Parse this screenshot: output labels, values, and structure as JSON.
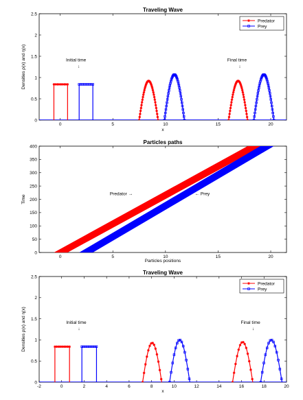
{
  "colors": {
    "predator": "#ff0000",
    "prey": "#0000ff",
    "axis": "#000000"
  },
  "chart_data": [
    {
      "type": "line",
      "title": "Traveling Wave",
      "xlabel": "x",
      "ylabel": "Densities ρ(x) and η(x)",
      "xlim": [
        -2,
        21.5
      ],
      "ylim": [
        0,
        2.5
      ],
      "xticks": [
        0,
        5,
        10,
        15,
        20
      ],
      "yticks": [
        0,
        0.5,
        1,
        1.5,
        2,
        2.5
      ],
      "xtick_labels": [
        "0",
        "5",
        "10",
        "15",
        "20"
      ],
      "ytick_labels": [
        "0",
        "0.5",
        "1",
        "1.5",
        "2",
        "2.5"
      ],
      "legend": {
        "position": "top-right",
        "entries": [
          "Predator",
          "Prey"
        ]
      },
      "annotations": [
        {
          "text": "Initial time",
          "x": 1.5,
          "y": 1.38
        },
        {
          "text": "Final time",
          "x": 16.8,
          "y": 1.38
        }
      ],
      "series": [
        {
          "name": "Predator",
          "shape": "box",
          "x": [
            -0.6,
            0.7
          ],
          "y": 0.84
        },
        {
          "name": "Prey",
          "shape": "box",
          "x": [
            1.8,
            3.1
          ],
          "y": 0.84
        },
        {
          "name": "Predator",
          "shape": "bump",
          "x": [
            7.5,
            9.3
          ],
          "y": 0.92
        },
        {
          "name": "Prey",
          "shape": "bump",
          "x": [
            9.9,
            11.8
          ],
          "y": 1.07
        },
        {
          "name": "Predator",
          "shape": "bump",
          "x": [
            16.0,
            17.8
          ],
          "y": 0.92
        },
        {
          "name": "Prey",
          "shape": "bump",
          "x": [
            18.4,
            20.3
          ],
          "y": 1.07
        }
      ]
    },
    {
      "type": "line",
      "title": "Particles paths",
      "xlabel": "Particles positions",
      "ylabel": "Time",
      "xlim": [
        -2,
        21.5
      ],
      "ylim": [
        0,
        400
      ],
      "xticks": [
        0,
        5,
        10,
        15,
        20
      ],
      "yticks": [
        0,
        50,
        100,
        150,
        200,
        250,
        300,
        350,
        400
      ],
      "xtick_labels": [
        "0",
        "5",
        "10",
        "15",
        "20"
      ],
      "ytick_labels": [
        "0",
        "50",
        "100",
        "150",
        "200",
        "250",
        "300",
        "350",
        "400"
      ],
      "annotations": [
        {
          "text": "Predator  →",
          "x": 5.8,
          "y": 215
        },
        {
          "text": "←  Prey",
          "x": 13.5,
          "y": 215
        }
      ],
      "series": [
        {
          "name": "Predator",
          "shape": "band",
          "x_start": [
            -0.6,
            0.7
          ],
          "x_end": [
            17.8,
            19.2
          ],
          "t": [
            0,
            400
          ]
        },
        {
          "name": "Prey",
          "shape": "band",
          "x_start": [
            1.8,
            3.1
          ],
          "x_end": [
            19.0,
            20.3
          ],
          "t": [
            0,
            400
          ]
        }
      ]
    },
    {
      "type": "line",
      "title": "Traveling Wave",
      "xlabel": "x",
      "ylabel": "Densities ρ(x) and η(x)",
      "xlim": [
        -2,
        20
      ],
      "ylim": [
        0,
        2.5
      ],
      "xticks": [
        -2,
        0,
        2,
        4,
        6,
        8,
        10,
        12,
        14,
        16,
        18,
        20
      ],
      "yticks": [
        0,
        0.5,
        1,
        1.5,
        2,
        2.5
      ],
      "xtick_labels": [
        "-2",
        "0",
        "2",
        "4",
        "6",
        "8",
        "10",
        "12",
        "14",
        "16",
        "18",
        "20"
      ],
      "ytick_labels": [
        "0",
        "0.5",
        "1",
        "1.5",
        "2",
        "2.5"
      ],
      "legend": {
        "position": "top-right",
        "entries": [
          "Predator",
          "Prey"
        ]
      },
      "annotations": [
        {
          "text": "Initial time",
          "x": 1.3,
          "y": 1.38
        },
        {
          "text": "Final time",
          "x": 16.8,
          "y": 1.38
        }
      ],
      "series": [
        {
          "name": "Predator",
          "shape": "box",
          "x": [
            -0.6,
            0.7
          ],
          "y": 0.84
        },
        {
          "name": "Prey",
          "shape": "box",
          "x": [
            1.8,
            3.1
          ],
          "y": 0.84
        },
        {
          "name": "Predator",
          "shape": "bump",
          "x": [
            7.2,
            8.9
          ],
          "y": 0.93
        },
        {
          "name": "Prey",
          "shape": "bump",
          "x": [
            9.6,
            11.4
          ],
          "y": 1.0
        },
        {
          "name": "Predator",
          "shape": "bump",
          "x": [
            15.2,
            17.0
          ],
          "y": 0.95
        },
        {
          "name": "Prey",
          "shape": "bump",
          "x": [
            17.7,
            19.6
          ],
          "y": 1.0
        }
      ]
    }
  ]
}
